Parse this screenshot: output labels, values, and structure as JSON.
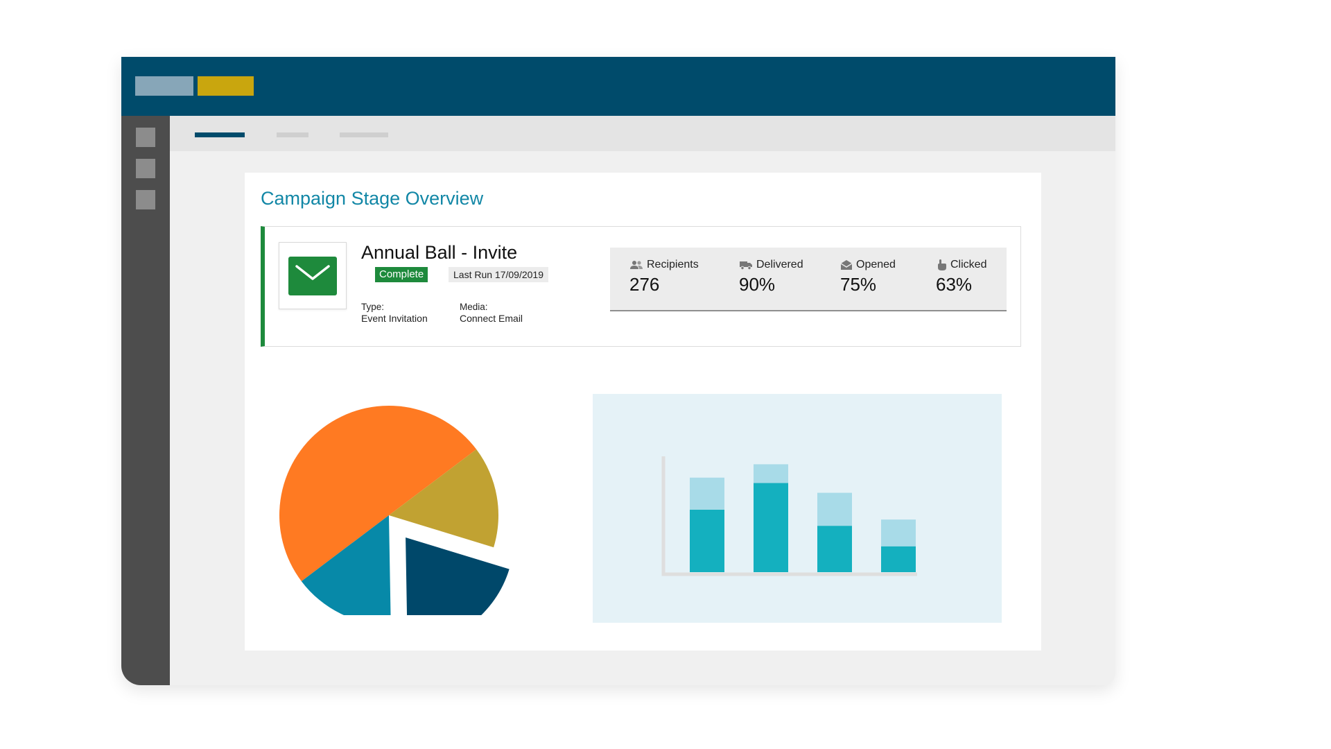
{
  "header": {
    "logo_colors": [
      "#87a6b8",
      "#c9a60e"
    ],
    "background": "#004b6b"
  },
  "sidebar": {
    "items": [
      "sidebar-item",
      "sidebar-item",
      "sidebar-item"
    ]
  },
  "tabs": [
    "active",
    "inactive",
    "inactive"
  ],
  "page": {
    "title": "Campaign Stage Overview"
  },
  "campaign": {
    "name": "Annual Ball - Invite",
    "status": "Complete",
    "last_run": "Last Run 17/09/2019",
    "type_label": "Type:",
    "type_value": "Event Invitation",
    "media_label": "Media:",
    "media_value": "Connect Email",
    "icon": "envelope-icon",
    "accent": "#1e8a3c"
  },
  "stats": [
    {
      "label": "Recipients",
      "value": "276",
      "icon": "people-icon"
    },
    {
      "label": "Delivered",
      "value": "90%",
      "icon": "truck-icon"
    },
    {
      "label": "Opened",
      "value": "75%",
      "icon": "open-envelope-icon"
    },
    {
      "label": "Clicked",
      "value": "63%",
      "icon": "pointer-hand-icon"
    }
  ],
  "chart_data": [
    {
      "type": "pie",
      "slices": [
        {
          "value": 50,
          "color": "#ff7a22"
        },
        {
          "value": 15,
          "color": "#c1a232"
        },
        {
          "value": 20,
          "color": "#00486a",
          "exploded": true
        },
        {
          "value": 15,
          "color": "#0789a8"
        }
      ]
    },
    {
      "type": "bar",
      "stacked": true,
      "categories": [
        "",
        "",
        "",
        ""
      ],
      "series": [
        {
          "values": [
            70,
            100,
            52,
            29
          ],
          "color": "#14b0bf"
        },
        {
          "values": [
            36,
            21,
            37,
            30
          ],
          "color": "#a8dbe8"
        }
      ],
      "ylim": [
        0,
        140
      ]
    }
  ]
}
